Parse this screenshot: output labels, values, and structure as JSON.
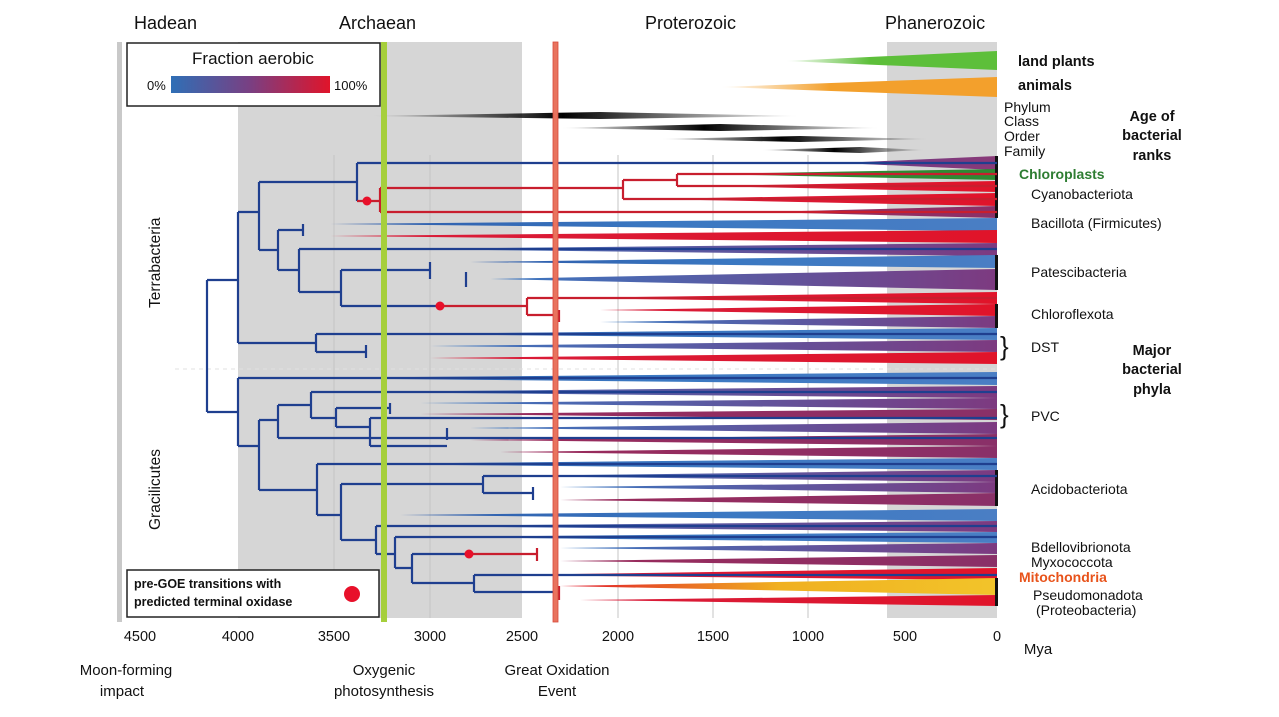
{
  "eras": [
    "Hadean",
    "Archaean",
    "Proterozoic",
    "Phanerozoic"
  ],
  "ticks": [
    "4500",
    "4000",
    "3500",
    "3000",
    "2500",
    "2000",
    "1500",
    "1000",
    "500",
    "0"
  ],
  "unit": "Mya",
  "events": {
    "moon": [
      "Moon-forming",
      "impact"
    ],
    "oxygenic": [
      "Oxygenic",
      "photosynthesis"
    ],
    "goe": [
      "Great Oxidation",
      "Event"
    ]
  },
  "legend": {
    "title": "Fraction aerobic",
    "min": "0%",
    "max": "100%",
    "colors": [
      "#2f6fb6",
      "#7a3f82",
      "#e0142a"
    ]
  },
  "eukaryote_groups": {
    "land_plants": "land plants",
    "animals": "animals",
    "land_plants_color": "#5dbf3a",
    "animals_color": "#f3a02c"
  },
  "ranks": {
    "items": [
      "Phylum",
      "Class",
      "Order",
      "Family"
    ],
    "title": [
      "Age of",
      "bacterial",
      "ranks"
    ]
  },
  "clades": {
    "terrabacteria": "Terrabacteria",
    "gracilicutes": "Gracilicutes"
  },
  "phyla": {
    "chloroplasts": "Chloroplasts",
    "cyanobacteriota": "Cyanobacteriota",
    "bacillota": "Bacillota (Firmicutes)",
    "patescibacteria": "Patescibacteria",
    "chloroflexota": "Chloroflexota",
    "dst": "DST",
    "pvc": "PVC",
    "acidobacteriota": "Acidobacteriota",
    "bdellovibrionota": "Bdellovibrionota",
    "myxococcota": "Myxococcota",
    "mitochondria": "Mitochondria",
    "pseudomonadota": [
      "Pseudomonadota",
      "(Proteobacteria)"
    ]
  },
  "major_phyla_label": [
    "Major",
    "bacterial",
    "phyla"
  ],
  "transition_legend": [
    "pre-GOE transitions with",
    "predicted terminal oxidase"
  ],
  "colors": {
    "aerobic": "#e0142a",
    "anaerobic": "#1f3f8f",
    "chloroplast_label": "#2e7d32",
    "mitochondria_label": "#e8531b",
    "oxygenic_line": "#a6cf3c",
    "goe_line": "#e8735e",
    "era_shade": "#d6d6d6"
  }
}
